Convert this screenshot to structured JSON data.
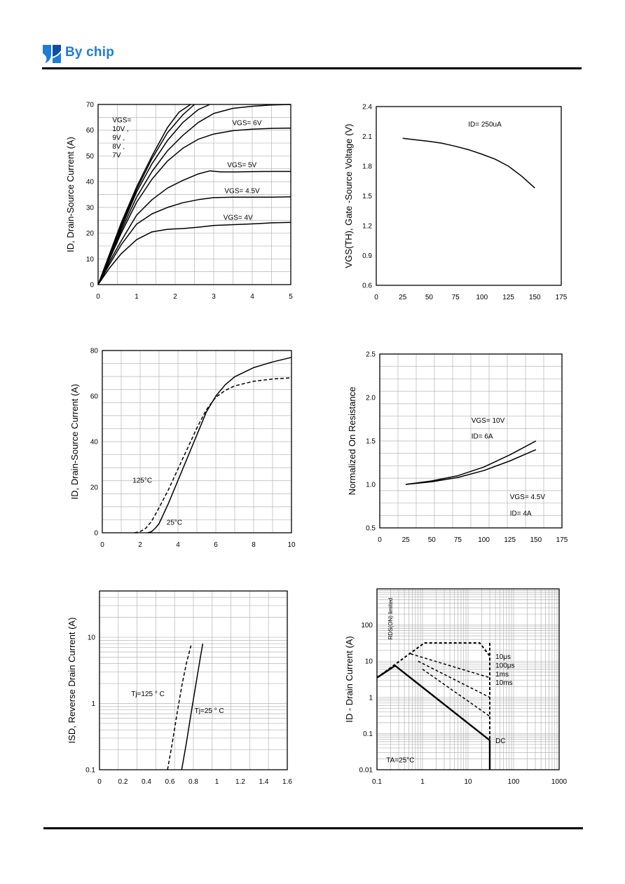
{
  "header": {
    "brand": "By chip",
    "brand_color": "#1d7dd6",
    "logo_colors": [
      "#1d7dd6",
      "#0c4fa3"
    ]
  },
  "chart_data": [
    {
      "id": "output",
      "type": "line",
      "title": "",
      "xlabel": "",
      "ylabel": "ID, Drain-Source Current (A)",
      "xlim": [
        0,
        5
      ],
      "ylim": [
        0,
        70
      ],
      "xticks": [
        0,
        1,
        2,
        3,
        4,
        5
      ],
      "yticks": [
        0,
        10,
        20,
        30,
        40,
        50,
        60,
        70
      ],
      "grid": true,
      "series": [
        {
          "name": "VGS=10V",
          "x": [
            0,
            0.3,
            0.6,
            1.0,
            1.4,
            1.8,
            2.1,
            2.4
          ],
          "y": [
            0,
            12,
            24,
            38,
            50,
            61,
            67,
            70
          ]
        },
        {
          "name": "VGS=9V",
          "x": [
            0,
            0.3,
            0.6,
            1.0,
            1.4,
            1.8,
            2.2,
            2.5
          ],
          "y": [
            0,
            11.5,
            23,
            37,
            49,
            59,
            66,
            70
          ]
        },
        {
          "name": "VGS=8V",
          "x": [
            0,
            0.3,
            0.6,
            1.0,
            1.4,
            1.8,
            2.2,
            2.6,
            2.9
          ],
          "y": [
            0,
            11,
            22,
            36,
            47,
            56,
            63,
            68,
            70
          ]
        },
        {
          "name": "VGS=7V",
          "x": [
            0,
            0.3,
            0.6,
            1.0,
            1.4,
            1.8,
            2.2,
            2.6,
            3.0,
            3.5,
            4.0,
            4.5,
            5.0
          ],
          "y": [
            0,
            10.5,
            21,
            34,
            44,
            52,
            58,
            63,
            66.5,
            68.5,
            69.3,
            69.8,
            70
          ]
        },
        {
          "name": "VGS=6V",
          "x": [
            0,
            0.3,
            0.6,
            1.0,
            1.4,
            1.8,
            2.2,
            2.6,
            3.0,
            3.5,
            4.0,
            4.5,
            5.0
          ],
          "y": [
            0,
            10,
            20,
            32,
            41,
            48,
            53,
            56.5,
            58.5,
            59.8,
            60.4,
            60.7,
            60.8
          ]
        },
        {
          "name": "VGS=5V",
          "x": [
            0,
            0.3,
            0.6,
            1.0,
            1.4,
            1.8,
            2.2,
            2.6,
            2.9,
            3.2,
            3.6,
            4.0,
            4.5,
            5.0
          ],
          "y": [
            0,
            9,
            17,
            27,
            33,
            37.5,
            40.5,
            43,
            44.2,
            43.8,
            43.8,
            43.9,
            44,
            44
          ]
        },
        {
          "name": "VGS=4.5V",
          "x": [
            0,
            0.3,
            0.6,
            1.0,
            1.4,
            1.8,
            2.2,
            2.6,
            3.0,
            3.5,
            4.0,
            4.5,
            5.0
          ],
          "y": [
            0,
            8,
            15.5,
            23.5,
            27.5,
            30,
            31.8,
            33,
            33.8,
            34,
            34,
            34,
            34.1
          ]
        },
        {
          "name": "VGS=4V",
          "x": [
            0,
            0.3,
            0.6,
            1.0,
            1.4,
            1.8,
            2.2,
            2.6,
            3.0,
            3.5,
            4.0,
            4.5,
            5.0
          ],
          "y": [
            0,
            6.5,
            12,
            17.5,
            20.5,
            21.5,
            21.8,
            22.3,
            23,
            23.3,
            23.6,
            24,
            24.2
          ]
        }
      ],
      "annotations": [
        {
          "text": "VGS=",
          "x": 0.37,
          "y": 63
        },
        {
          "text": "10V ,",
          "x": 0.37,
          "y": 59.6
        },
        {
          "text": "9V ,",
          "x": 0.37,
          "y": 56.2
        },
        {
          "text": "8V ,",
          "x": 0.37,
          "y": 52.8
        },
        {
          "text": "7V",
          "x": 0.37,
          "y": 49.4
        },
        {
          "text": "VGS= 6V",
          "x": 3.48,
          "y": 62
        },
        {
          "text": "VGS= 5V",
          "x": 3.35,
          "y": 45.6
        },
        {
          "text": "VGS= 4.5V",
          "x": 3.28,
          "y": 35.6
        },
        {
          "text": "VGS= 4V",
          "x": 3.25,
          "y": 25.2
        }
      ]
    },
    {
      "id": "threshold",
      "type": "line",
      "title": "",
      "xlabel": "",
      "ylabel": "VGS(TH), Gate -Source Voltage (V)",
      "xlim": [
        0,
        175
      ],
      "ylim": [
        0.6,
        2.4
      ],
      "xticks": [
        0,
        25,
        50,
        75,
        100,
        125,
        150,
        175
      ],
      "yticks": [
        0.6,
        0.9,
        1.2,
        1.5,
        1.8,
        2.1,
        2.4
      ],
      "ytick_labels": [
        "0.6",
        "0.9",
        "1.2",
        "1.5",
        "1.8",
        "2.1",
        "2.4"
      ],
      "grid": false,
      "series": [
        {
          "name": "",
          "x": [
            25,
            37.5,
            50,
            62.5,
            75,
            87.5,
            100,
            112.5,
            125,
            137.5,
            150
          ],
          "y": [
            2.08,
            2.065,
            2.05,
            2.03,
            2.0,
            1.965,
            1.92,
            1.87,
            1.8,
            1.7,
            1.58
          ]
        }
      ],
      "annotations": [
        {
          "text": "ID= 250uA",
          "x": 87,
          "y": 2.2
        }
      ]
    },
    {
      "id": "transfer",
      "type": "line",
      "title": "",
      "xlabel": "",
      "ylabel": "ID, Drain-Source Current (A)",
      "xlim": [
        0,
        10
      ],
      "ylim": [
        0,
        80
      ],
      "xticks": [
        0,
        2,
        4,
        6,
        8,
        10
      ],
      "yticks": [
        0,
        20,
        40,
        60,
        80
      ],
      "grid": true,
      "series": [
        {
          "name": "125°C",
          "dashed": true,
          "x": [
            1.7,
            2.0,
            2.3,
            2.6,
            3.0,
            3.5,
            4.0,
            4.5,
            5.0,
            5.5,
            6.0,
            6.5,
            7.0,
            8.0,
            9.0,
            10.0
          ],
          "y": [
            0,
            0.5,
            2,
            5,
            11,
            19,
            28,
            37,
            46,
            54,
            59.5,
            62.5,
            64.5,
            66.5,
            67.5,
            68
          ]
        },
        {
          "name": "25°C",
          "dashed": false,
          "x": [
            2.4,
            2.6,
            2.8,
            3.0,
            3.5,
            4.0,
            4.5,
            5.0,
            5.5,
            6.0,
            6.5,
            7.0,
            8.0,
            9.0,
            10.0
          ],
          "y": [
            0,
            0.5,
            2,
            4,
            13,
            23,
            33,
            43,
            53,
            60,
            65,
            68.5,
            72.5,
            75,
            77
          ]
        }
      ],
      "annotations": [
        {
          "text": "125°C",
          "x": 1.6,
          "y": 22
        },
        {
          "text": "25°C",
          "x": 3.4,
          "y": 3.5
        }
      ]
    },
    {
      "id": "on_resistance",
      "type": "line",
      "title": "",
      "xlabel": "",
      "ylabel": "Normalized On Resistance",
      "xlim": [
        0,
        175
      ],
      "ylim": [
        0.5,
        2.5
      ],
      "xticks": [
        0,
        25,
        50,
        75,
        100,
        125,
        150,
        175
      ],
      "yticks": [
        0.5,
        1.0,
        1.5,
        2.0,
        2.5
      ],
      "ytick_labels": [
        "0.5",
        "1.0",
        "1.5",
        "2.0",
        "2.5"
      ],
      "grid": true,
      "series": [
        {
          "name": "VGS= 10V ID= 6A",
          "x": [
            25,
            50,
            75,
            100,
            125,
            150
          ],
          "y": [
            1.0,
            1.04,
            1.1,
            1.2,
            1.34,
            1.5
          ]
        },
        {
          "name": "VGS= 4.5V ID= 4A",
          "x": [
            25,
            50,
            75,
            100,
            125,
            150
          ],
          "y": [
            1.0,
            1.03,
            1.08,
            1.16,
            1.27,
            1.4
          ]
        }
      ],
      "annotations": [
        {
          "text": "VGS= 10V",
          "x": 88,
          "y": 1.71
        },
        {
          "text": "ID= 6A",
          "x": 88,
          "y": 1.53
        },
        {
          "text": "VGS= 4.5V",
          "x": 125,
          "y": 0.83
        },
        {
          "text": "ID= 4A",
          "x": 125,
          "y": 0.64
        }
      ]
    },
    {
      "id": "body_diode",
      "type": "line",
      "title": "",
      "xlabel": "",
      "ylabel": "ISD, Reverse Drain Current (A)",
      "xlim": [
        0,
        1.6
      ],
      "ylim": [
        0.1,
        50
      ],
      "yscale": "log",
      "xticks": [
        0,
        0.2,
        0.4,
        0.6,
        0.8,
        1,
        1.2,
        1.4,
        1.6
      ],
      "xtick_labels": [
        "0",
        "0.2",
        "0.4",
        "0.6",
        "0.8",
        "1",
        "1.2",
        "1.4",
        "1.6"
      ],
      "yticks": [
        0.1,
        1,
        10
      ],
      "ytick_labels": [
        "0.1",
        "1",
        "10"
      ],
      "grid": true,
      "series": [
        {
          "name": "Tj=125°C",
          "dashed": true,
          "x": [
            0.58,
            0.62,
            0.66,
            0.7,
            0.74,
            0.78
          ],
          "y": [
            0.1,
            0.25,
            0.7,
            1.8,
            4.0,
            7.5
          ]
        },
        {
          "name": "Tj=25°C",
          "dashed": false,
          "x": [
            0.7,
            0.74,
            0.78,
            0.82,
            0.86,
            0.88
          ],
          "y": [
            0.1,
            0.25,
            0.7,
            1.9,
            5.0,
            8.0
          ]
        }
      ],
      "annotations": [
        {
          "text": "Tj=125 ° C",
          "x": 0.27,
          "y": 1.3
        },
        {
          "text": "Tj=25 ° C",
          "x": 0.81,
          "y": 0.72
        }
      ]
    },
    {
      "id": "soa",
      "type": "line",
      "title": "",
      "xlabel": "",
      "ylabel": "ID - Drain Current (A)",
      "xlim": [
        0.1,
        1000
      ],
      "ylim": [
        0.01,
        1000
      ],
      "xscale": "log",
      "yscale": "log",
      "xticks": [
        0.1,
        1,
        10,
        100,
        1000
      ],
      "xtick_labels": [
        "0.1",
        "1",
        "10",
        "100",
        "1000"
      ],
      "yticks": [
        0.01,
        0.1,
        1,
        10,
        100
      ],
      "ytick_labels": [
        "0.01",
        "0.1",
        "1",
        "10",
        "100"
      ],
      "grid": true,
      "series": [
        {
          "name": "RDS(ON) limited",
          "dashed": true,
          "x": [
            0.1,
            1.1
          ],
          "y": [
            3.5,
            32
          ]
        },
        {
          "name": "10μs",
          "dashed": true,
          "x": [
            1.1,
            18,
            30,
            30
          ],
          "y": [
            32,
            32,
            14,
            8
          ]
        },
        {
          "name": "100μs",
          "dashed": true,
          "x": [
            0.55,
            30
          ],
          "y": [
            16,
            3.5
          ]
        },
        {
          "name": "1ms",
          "dashed": true,
          "x": [
            0.8,
            30
          ],
          "y": [
            10,
            1.0
          ]
        },
        {
          "name": "10ms",
          "dashed": true,
          "x": [
            1.0,
            30
          ],
          "y": [
            6,
            0.3
          ]
        },
        {
          "name": "DC",
          "dashed": false,
          "x": [
            0.1,
            0.25,
            30,
            30
          ],
          "y": [
            3.5,
            7.5,
            0.065,
            0.01
          ]
        },
        {
          "name": "",
          "dashed": true,
          "x": [
            30,
            30
          ],
          "y": [
            32,
            0.065
          ]
        }
      ],
      "annotations": [
        {
          "text": "10μs",
          "x": 40,
          "y": 11.5
        },
        {
          "text": "100μs",
          "x": 40,
          "y": 6.6
        },
        {
          "text": "1ms",
          "x": 40,
          "y": 3.8
        },
        {
          "text": "10ms",
          "x": 40,
          "y": 2.2
        },
        {
          "text": "DC",
          "x": 40,
          "y": 0.055
        },
        {
          "text": "TA=25°C",
          "x": 0.16,
          "y": 0.016
        }
      ],
      "vertical_label": "RDS(ON) limited"
    }
  ]
}
